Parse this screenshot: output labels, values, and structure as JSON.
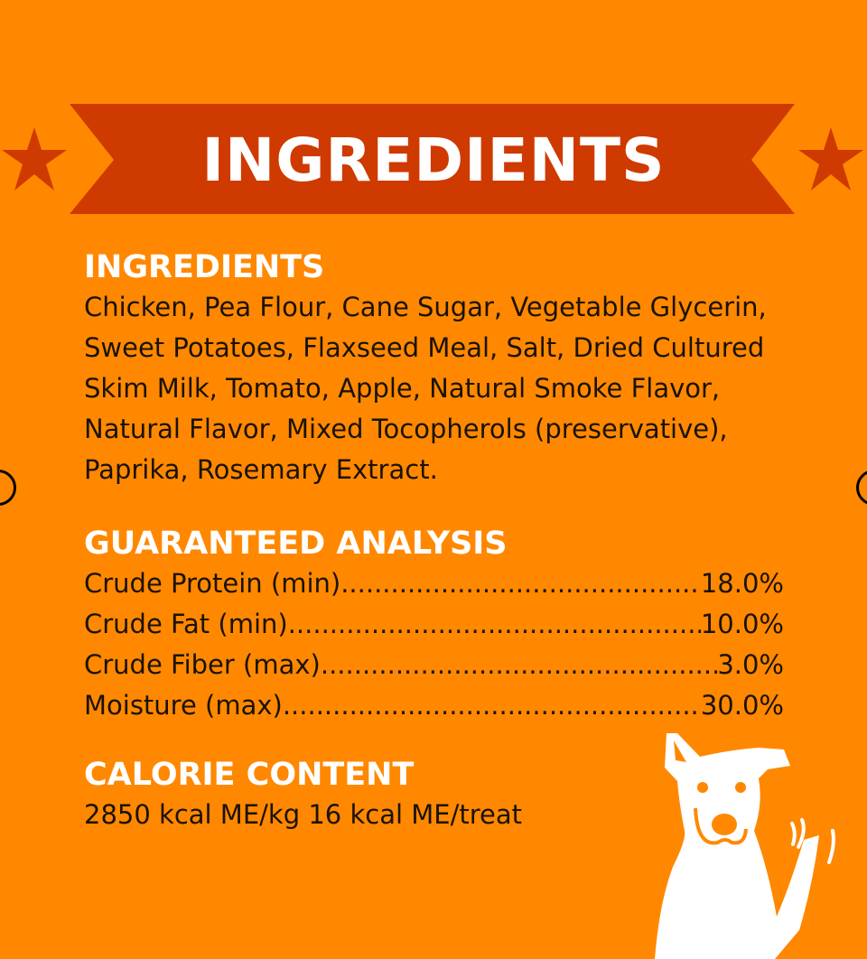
{
  "banner": {
    "title": "INGREDIENTS",
    "color": "#cf3a00"
  },
  "ingredients": {
    "heading": "INGREDIENTS",
    "text": "Chicken, Pea Flour, Cane Sugar, Vegetable Glycerin, Sweet Potatoes, Flaxseed Meal, Salt, Dried Cultured Skim Milk, Tomato, Apple, Natural Smoke Flavor, Natural Flavor, Mixed Tocopherols (preservative), Paprika, Rosemary Extract."
  },
  "analysis": {
    "heading": "GUARANTEED ANALYSIS",
    "rows": [
      {
        "label": "Crude Protein (min)",
        "value": "18.0%"
      },
      {
        "label": "Crude Fat (min)",
        "value": "10.0%"
      },
      {
        "label": "Crude Fiber (max)",
        "value": "3.0%"
      },
      {
        "label": "Moisture (max)",
        "value": "30.0%"
      }
    ]
  },
  "calories": {
    "heading": "CALORIE CONTENT",
    "text": "2850 kcal ME/kg 16 kcal ME/treat"
  },
  "colors": {
    "background": "#ff8800",
    "accent": "#cf3a00"
  }
}
